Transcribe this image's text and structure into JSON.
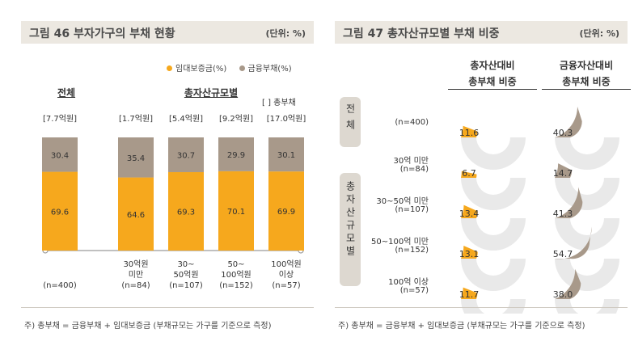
{
  "colors": {
    "mortgage": "#f6a81d",
    "financial": "#a8998a",
    "ringBg": "#e9e9e9",
    "axis": "#9a9a9a"
  },
  "fig46": {
    "title": "그림 46  부자가구의 부채 현황",
    "unit": "(단위: %)",
    "legend": [
      "임대보증금(%)",
      "금융부채(%)"
    ],
    "group_total": "전체",
    "group_size": "총자산규모별",
    "bracket_label": "[ ] 총부채",
    "note": "주) 총부채 = 금융부채 + 임대보증금 (부채규모는 가구를 기준으로 측정)"
  },
  "fig47": {
    "title": "그림 47  총자산규모별 부채 비중",
    "unit": "(단위: %)",
    "col1": [
      "총자산대비",
      "총부채 비중"
    ],
    "col2": [
      "금융자산대비",
      "총부채 비중"
    ],
    "pill_total": "전체",
    "pill_size": "총자산규모별",
    "rows": [
      {
        "label": "",
        "n": "(n=400)",
        "v1": 11.6,
        "v2": 40.3
      },
      {
        "label": "30억 미만",
        "n": "(n=84)",
        "v1": 6.7,
        "v2": 14.7
      },
      {
        "label": "30~50억 미만",
        "n": "(n=107)",
        "v1": 13.4,
        "v2": 41.3
      },
      {
        "label": "50~100억 미만",
        "n": "(n=152)",
        "v1": 13.1,
        "v2": 54.7
      },
      {
        "label": "100억 이상",
        "n": "(n=57)",
        "v1": 11.7,
        "v2": 38.0
      }
    ],
    "note": "주) 총부채 = 금융부채 + 임대보증금 (부채규모는 가구를 기준으로 측정)"
  },
  "chart_data": [
    {
      "type": "bar",
      "stacked": true,
      "title": "그림 46  부자가구의 부채 현황",
      "categories": [
        {
          "label": "",
          "total": "[7.7억원]",
          "n": "(n=400)"
        },
        {
          "label": "30억원\n미만",
          "total": "[1.7억원]",
          "n": "(n=84)"
        },
        {
          "label": "30~\n50억원",
          "total": "[5.4억원]",
          "n": "(n=107)"
        },
        {
          "label": "50~\n100억원",
          "total": "[9.2억원]",
          "n": "(n=152)"
        },
        {
          "label": "100억원\n이상",
          "total": "[17.0억원]",
          "n": "(n=57)"
        }
      ],
      "series": [
        {
          "name": "임대보증금(%)",
          "values": [
            69.6,
            64.6,
            69.3,
            70.1,
            69.9
          ]
        },
        {
          "name": "금융부채(%)",
          "values": [
            30.4,
            35.4,
            30.7,
            29.9,
            30.1
          ]
        }
      ],
      "ylim": [
        0,
        100
      ],
      "legend": "top-right"
    },
    {
      "type": "pie",
      "subtype": "half-donut",
      "title": "그림 47  총자산규모별 부채 비중",
      "series": [
        {
          "name": "총자산대비 총부채 비중",
          "values": [
            11.6,
            6.7,
            13.4,
            13.1,
            11.7
          ]
        },
        {
          "name": "금융자산대비 총부채 비중",
          "values": [
            40.3,
            14.7,
            41.3,
            54.7,
            38.0
          ]
        }
      ],
      "categories": [
        "(n=400)",
        "30억 미만 (n=84)",
        "30~50억 미만 (n=107)",
        "50~100억 미만 (n=152)",
        "100억 이상 (n=57)"
      ]
    }
  ]
}
